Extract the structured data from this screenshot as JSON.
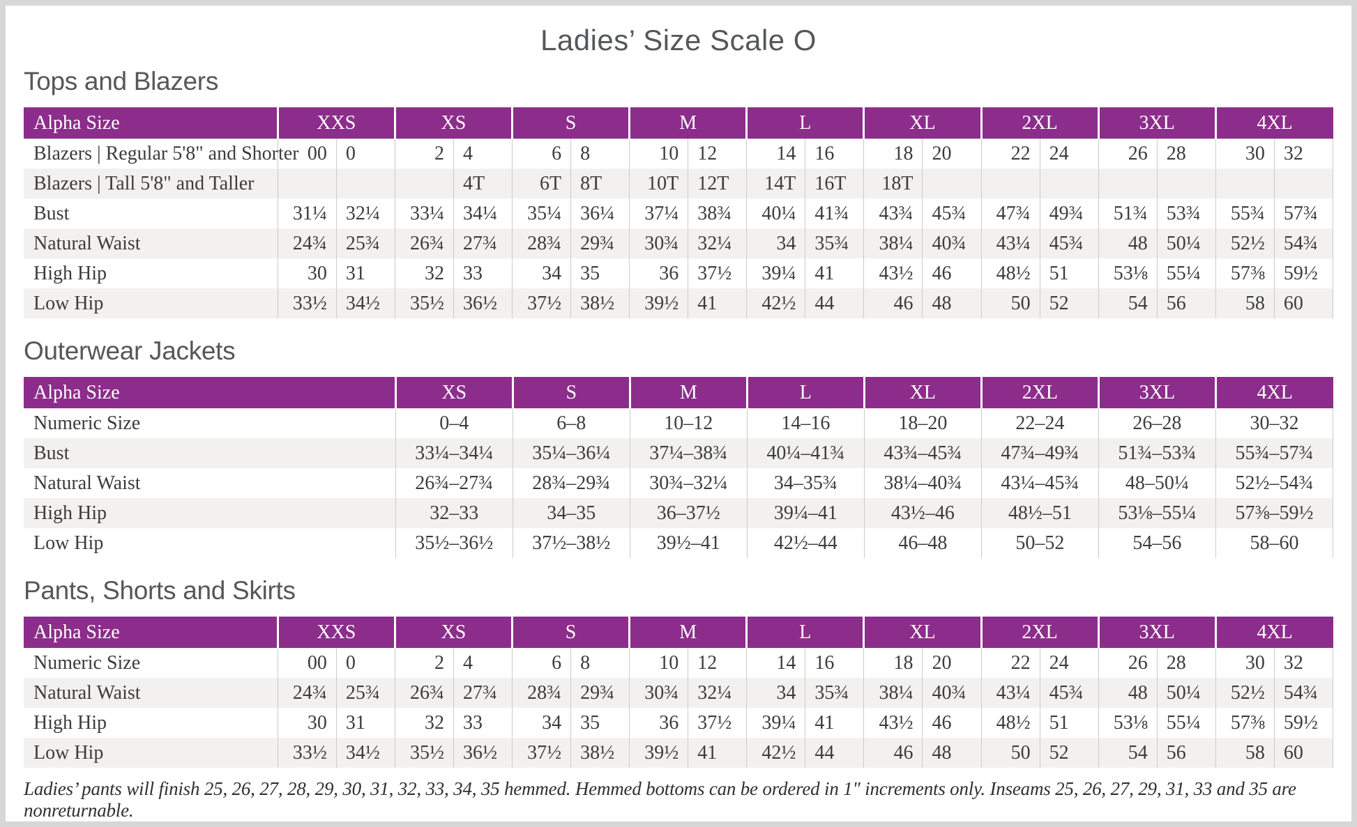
{
  "page": {
    "title": "Ladies’ Size Scale O",
    "footnote": "Ladies’ pants will finish 25, 26, 27, 28, 29, 30, 31, 32, 33, 34, 35 hemmed. Hemmed bottoms can be ordered in 1\" increments only. Inseams 25, 26, 27, 29, 31, 33 and 35 are nonreturnable."
  },
  "colors": {
    "header_purple": "#8c2d8b",
    "header_text": "#ffffff",
    "row_alt_gray": "#f2f1ef",
    "divider_gray": "#cccbc9",
    "heading_gray": "#55575a",
    "body_text": "#3c3c3e",
    "page_frame": "#d7d7d7"
  },
  "tables": [
    {
      "heading": "Tops and Blazers",
      "corner_label": "Alpha Size",
      "sizes": [
        "XXS",
        "XS",
        "S",
        "M",
        "L",
        "XL",
        "2XL",
        "3XL",
        "4XL"
      ],
      "cols_per_size": 2,
      "rows": [
        {
          "label": "Blazers  |  Regular 5'8\" and Shorter",
          "cells": [
            "00",
            "0",
            "2",
            "4",
            "6",
            "8",
            "10",
            "12",
            "14",
            "16",
            "18",
            "20",
            "22",
            "24",
            "26",
            "28",
            "30",
            "32"
          ]
        },
        {
          "label": "Blazers  |  Tall 5'8\" and Taller",
          "cells": [
            "",
            "",
            "",
            "4T",
            "6T",
            "8T",
            "10T",
            "12T",
            "14T",
            "16T",
            "18T",
            "",
            "",
            "",
            "",
            "",
            "",
            ""
          ]
        },
        {
          "label": "Bust",
          "cells": [
            "31¼",
            "32¼",
            "33¼",
            "34¼",
            "35¼",
            "36¼",
            "37¼",
            "38¾",
            "40¼",
            "41¾",
            "43¾",
            "45¾",
            "47¾",
            "49¾",
            "51¾",
            "53¾",
            "55¾",
            "57¾"
          ]
        },
        {
          "label": "Natural Waist",
          "cells": [
            "24¾",
            "25¾",
            "26¾",
            "27¾",
            "28¾",
            "29¾",
            "30¾",
            "32¼",
            "34",
            "35¾",
            "38¼",
            "40¾",
            "43¼",
            "45¾",
            "48",
            "50¼",
            "52½",
            "54¾"
          ]
        },
        {
          "label": "High Hip",
          "cells": [
            "30",
            "31",
            "32",
            "33",
            "34",
            "35",
            "36",
            "37½",
            "39¼",
            "41",
            "43½",
            "46",
            "48½",
            "51",
            "53⅛",
            "55¼",
            "57⅜",
            "59½"
          ]
        },
        {
          "label": "Low Hip",
          "cells": [
            "33½",
            "34½",
            "35½",
            "36½",
            "37½",
            "38½",
            "39½",
            "41",
            "42½",
            "44",
            "46",
            "48",
            "50",
            "52",
            "54",
            "56",
            "58",
            "60"
          ]
        }
      ]
    },
    {
      "heading": "Outerwear Jackets",
      "corner_label": "Alpha Size",
      "sizes": [
        "XS",
        "S",
        "M",
        "L",
        "XL",
        "2XL",
        "3XL",
        "4XL"
      ],
      "cols_per_size": 1,
      "rows": [
        {
          "label": "Numeric Size",
          "cells": [
            "0–4",
            "6–8",
            "10–12",
            "14–16",
            "18–20",
            "22–24",
            "26–28",
            "30–32"
          ]
        },
        {
          "label": "Bust",
          "cells": [
            "33¼–34¼",
            "35¼–36¼",
            "37¼–38¾",
            "40¼–41¾",
            "43¾–45¾",
            "47¾–49¾",
            "51¾–53¾",
            "55¾–57¾"
          ]
        },
        {
          "label": "Natural Waist",
          "cells": [
            "26¾–27¾",
            "28¾–29¾",
            "30¾–32¼",
            "34–35¾",
            "38¼–40¾",
            "43¼–45¾",
            "48–50¼",
            "52½–54¾"
          ]
        },
        {
          "label": "High Hip",
          "cells": [
            "32–33",
            "34–35",
            "36–37½",
            "39¼–41",
            "43½–46",
            "48½–51",
            "53⅛–55¼",
            "57⅜–59½"
          ]
        },
        {
          "label": "Low Hip",
          "cells": [
            "35½–36½",
            "37½–38½",
            "39½–41",
            "42½–44",
            "46–48",
            "50–52",
            "54–56",
            "58–60"
          ]
        }
      ]
    },
    {
      "heading": "Pants, Shorts and Skirts",
      "corner_label": "Alpha Size",
      "sizes": [
        "XXS",
        "XS",
        "S",
        "M",
        "L",
        "XL",
        "2XL",
        "3XL",
        "4XL"
      ],
      "cols_per_size": 2,
      "rows": [
        {
          "label": "Numeric Size",
          "cells": [
            "00",
            "0",
            "2",
            "4",
            "6",
            "8",
            "10",
            "12",
            "14",
            "16",
            "18",
            "20",
            "22",
            "24",
            "26",
            "28",
            "30",
            "32"
          ]
        },
        {
          "label": "Natural Waist",
          "cells": [
            "24¾",
            "25¾",
            "26¾",
            "27¾",
            "28¾",
            "29¾",
            "30¾",
            "32¼",
            "34",
            "35¾",
            "38¼",
            "40¾",
            "43¼",
            "45¾",
            "48",
            "50¼",
            "52½",
            "54¾"
          ]
        },
        {
          "label": "High Hip",
          "cells": [
            "30",
            "31",
            "32",
            "33",
            "34",
            "35",
            "36",
            "37½",
            "39¼",
            "41",
            "43½",
            "46",
            "48½",
            "51",
            "53⅛",
            "55¼",
            "57⅜",
            "59½"
          ]
        },
        {
          "label": "Low Hip",
          "cells": [
            "33½",
            "34½",
            "35½",
            "36½",
            "37½",
            "38½",
            "39½",
            "41",
            "42½",
            "44",
            "46",
            "48",
            "50",
            "52",
            "54",
            "56",
            "58",
            "60"
          ]
        }
      ]
    }
  ]
}
